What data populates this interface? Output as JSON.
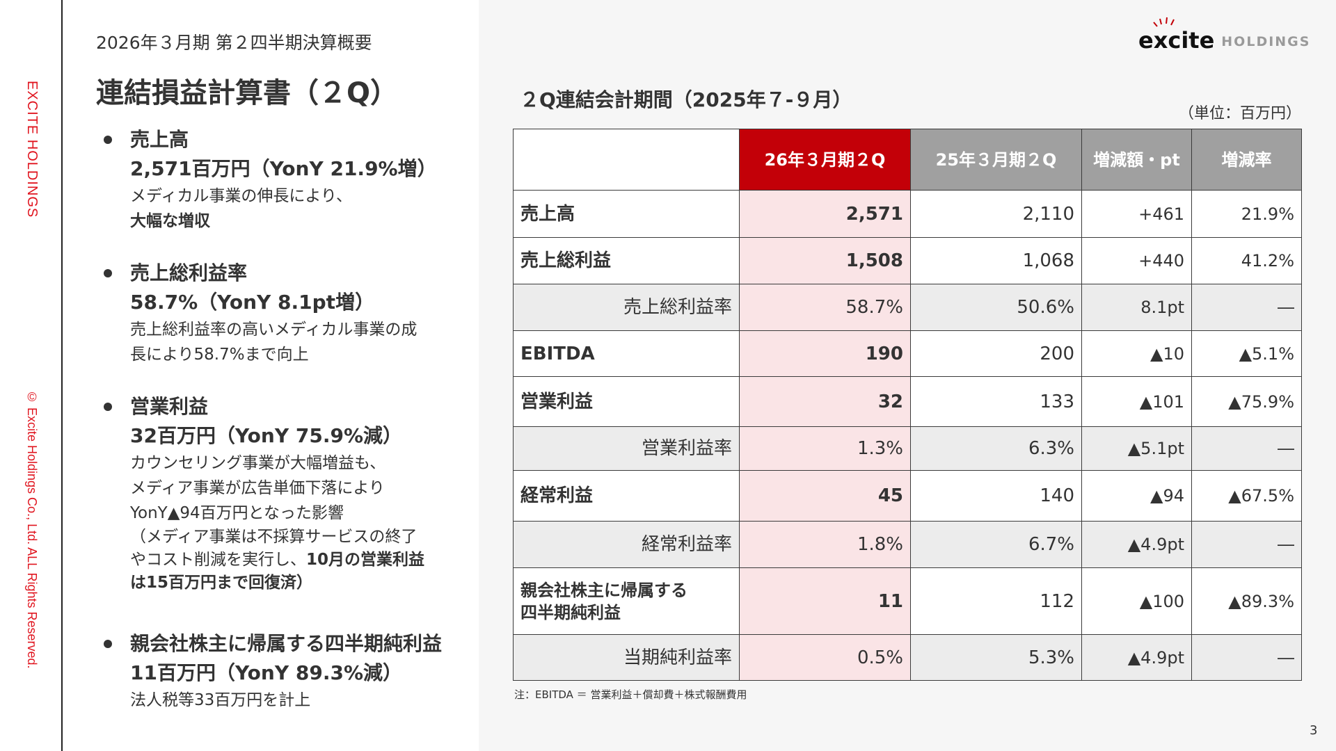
{
  "side": {
    "brand": "EXCITE HOLDINGS",
    "copyright": "© Excite Holdings Co., Ltd. ALL Rights Reserved."
  },
  "header": {
    "subtitle": "2026年３月期 第２四半期決算概要",
    "title": "連結損益計算書（２Q）"
  },
  "bullets": [
    {
      "head": "売上高",
      "value": "2,571百万円（YonY 21.9%増）",
      "lines": [
        "メディカル事業の伸長により、"
      ],
      "bold_line": "大幅な増収"
    },
    {
      "head": "売上総利益率",
      "value": "58.7%（YonY 8.1pt増）",
      "lines": [
        "売上総利益率の高いメディカル事業の成",
        "長により58.7%まで向上"
      ]
    },
    {
      "head": "営業利益",
      "value": "32百万円（YonY 75.9%減）",
      "lines": [
        "カウンセリング事業が大幅増益も、",
        "メディア事業が広告単価下落により",
        "YonY▲94百万円となった影響",
        "（メディア事業は不採算サービスの終了"
      ],
      "mixed": {
        "normal": "やコスト削減を実行し、",
        "bold": "10月の営業利益"
      },
      "bold_line": "は15百万円まで回復済）"
    },
    {
      "head": "親会社株主に帰属する四半期純利益",
      "value": "11百万円（YonY 89.3%減）",
      "lines": [
        "法人税等33百万円を計上"
      ]
    }
  ],
  "logo": {
    "mark": "excite",
    "suffix": "HOLDINGS"
  },
  "section": {
    "title": "２Q連結会計期間（2025年７-９月）",
    "unit": "（単位：百万円）"
  },
  "table": {
    "headers": [
      "",
      "26年３月期２Q",
      "25年３月期２Q",
      "増減額・pt",
      "増減率"
    ],
    "rows": [
      {
        "type": "main",
        "cells": [
          "売上高",
          "2,571",
          "2,110",
          "+461",
          "21.9%"
        ]
      },
      {
        "type": "main",
        "cells": [
          "売上総利益",
          "1,508",
          "1,068",
          "+440",
          "41.2%"
        ]
      },
      {
        "type": "sub",
        "cells": [
          "売上総利益率",
          "58.7%",
          "50.6%",
          "8.1pt",
          "―"
        ]
      },
      {
        "type": "main",
        "cells": [
          "EBITDA",
          "190",
          "200",
          "▲10",
          "▲5.1%"
        ]
      },
      {
        "type": "main",
        "cells": [
          "営業利益",
          "32",
          "133",
          "▲101",
          "▲75.9%"
        ]
      },
      {
        "type": "sub",
        "cells": [
          "営業利益率",
          "1.3%",
          "6.3%",
          "▲5.1pt",
          "―"
        ]
      },
      {
        "type": "main",
        "cells": [
          "経常利益",
          "45",
          "140",
          "▲94",
          "▲67.5%"
        ]
      },
      {
        "type": "sub",
        "cells": [
          "経常利益率",
          "1.8%",
          "6.7%",
          "▲4.9pt",
          "―"
        ]
      },
      {
        "type": "main",
        "cells": [
          "親会社株主に帰属する\n四半期純利益",
          "11",
          "112",
          "▲100",
          "▲89.3%"
        ]
      },
      {
        "type": "sub",
        "cells": [
          "当期純利益率",
          "0.5%",
          "5.3%",
          "▲4.9pt",
          "―"
        ]
      }
    ]
  },
  "note": "注：EBITDA ＝ 営業利益＋償却費＋株式報酬費用",
  "page": "3",
  "colors": {
    "accent": "#c30008",
    "highlight": "#fae4e6",
    "header_gray": "#a0a0a0",
    "brand_red": "#e0141e"
  }
}
